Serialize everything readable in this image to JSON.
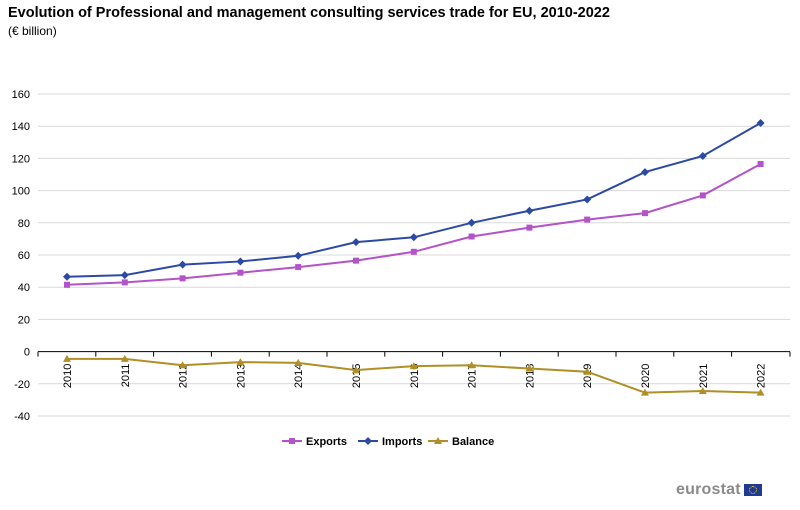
{
  "title": "Evolution of Professional and management consulting services trade for EU, 2010-2022",
  "subtitle": "(€ billion)",
  "brand": "eurostat",
  "chart_data": {
    "type": "line",
    "categories": [
      "2010",
      "2011",
      "2012",
      "2013",
      "2014",
      "2015",
      "2016",
      "2017",
      "2018",
      "2019",
      "2020",
      "2021",
      "2022"
    ],
    "ylim": [
      -40,
      160
    ],
    "yticks": [
      -40,
      -20,
      0,
      20,
      40,
      60,
      80,
      100,
      120,
      140,
      160
    ],
    "grid": true,
    "legend_position": "bottom-center",
    "series": [
      {
        "name": "Exports",
        "color": "#b452c8",
        "marker": "square",
        "values": [
          41.5,
          43,
          45.5,
          49,
          52.5,
          56.5,
          62,
          71.5,
          77,
          82,
          86,
          97,
          116.5
        ]
      },
      {
        "name": "Imports",
        "color": "#2c4aa3",
        "marker": "diamond",
        "values": [
          46.5,
          47.5,
          54,
          56,
          59.5,
          68,
          71,
          80,
          87.5,
          94.5,
          111.5,
          121.5,
          142
        ]
      },
      {
        "name": "Balance",
        "color": "#b08f26",
        "marker": "triangle",
        "values": [
          -4.5,
          -4.5,
          -8.5,
          -6.5,
          -7,
          -11.5,
          -9,
          -8.5,
          -10.5,
          -12.5,
          -25.5,
          -24.5,
          -25.5
        ]
      }
    ]
  }
}
